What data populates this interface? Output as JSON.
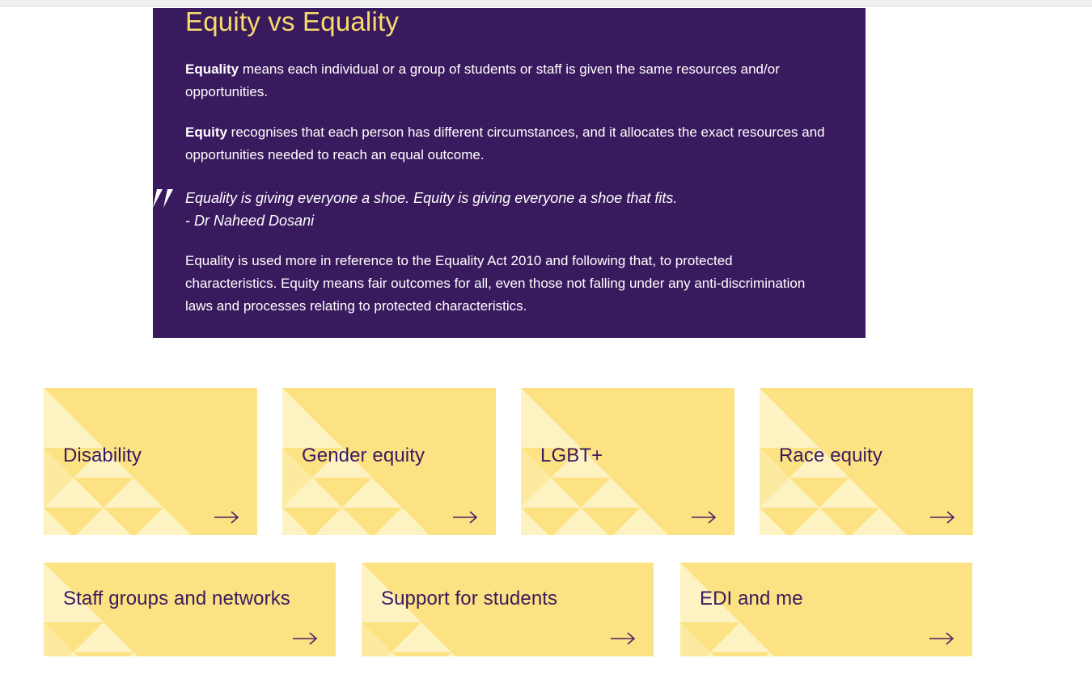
{
  "panel": {
    "title": "Equity vs Equality",
    "paragraphs": [
      {
        "lead": "Equality",
        "rest": " means each individual or a group of students or staff is given the same resources and/or opportunities."
      },
      {
        "lead": "Equity",
        "rest": " recognises that each person has different circumstances, and it allocates the exact resources and opportunities needed to reach an equal outcome."
      }
    ],
    "quote": {
      "text": "Equality is giving everyone a shoe. Equity is giving everyone a shoe that fits.",
      "attribution": "- Dr Naheed Dosani"
    },
    "footer_paragraph": "Equality is used more in reference to the Equality Act 2010 and following that, to protected characteristics. Equity means fair outcomes for all, even those not falling under any anti-discrimination laws and processes relating to protected characteristics.",
    "colors": {
      "background": "#3a1a5e",
      "title": "#f7dc6a",
      "text": "#ffffff"
    }
  },
  "cards": [
    {
      "title": "Disability"
    },
    {
      "title": "Gender equity"
    },
    {
      "title": "LGBT+"
    },
    {
      "title": "Race equity"
    },
    {
      "title": "Staff groups and networks"
    },
    {
      "title": "Support for students"
    },
    {
      "title": "EDI and me"
    }
  ],
  "card_style": {
    "background": "#fce282",
    "pattern_light": "#fceaa0",
    "pattern_lighter": "#fdf2c2",
    "title_color": "#3a1a5e",
    "arrow_color": "#4a2367",
    "arrow_icon": "arrow-right"
  }
}
